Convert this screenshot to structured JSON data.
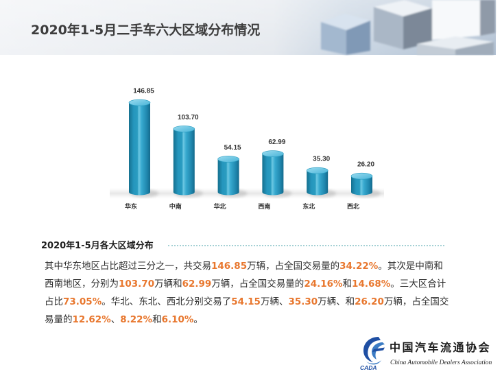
{
  "header": {
    "title": "2020年1-5月二手车六大区域分布情况"
  },
  "chart_data": {
    "type": "bar",
    "categories": [
      "华东",
      "中南",
      "华北",
      "西南",
      "东北",
      "西北"
    ],
    "values": [
      146.85,
      103.7,
      54.15,
      62.99,
      35.3,
      26.2
    ],
    "value_labels": [
      "146.85",
      "103.70",
      "54.15",
      "62.99",
      "35.30",
      "26.20"
    ],
    "bar_color": "#2a9cc0",
    "grid": false,
    "axes_visible": false,
    "legend": "none"
  },
  "summary": {
    "title": "2020年1-5月各大区域分布",
    "highlight_color": "#e8772e",
    "lines": [
      [
        {
          "text": "其中华东地区占比超过三分之一，共交易",
          "highlight": false
        },
        {
          "text": "146.85",
          "highlight": true
        },
        {
          "text": "万辆，占全国交易量的",
          "highlight": false
        },
        {
          "text": "34.22%",
          "highlight": true
        },
        {
          "text": "。其次是中南和",
          "highlight": false
        }
      ],
      [
        {
          "text": "西南地区，分别为",
          "highlight": false
        },
        {
          "text": "103.70",
          "highlight": true
        },
        {
          "text": "万辆和",
          "highlight": false
        },
        {
          "text": "62.99",
          "highlight": true
        },
        {
          "text": "万辆，占全国交易量的",
          "highlight": false
        },
        {
          "text": "24.16%",
          "highlight": true
        },
        {
          "text": "和",
          "highlight": false
        },
        {
          "text": "14.68%",
          "highlight": true
        },
        {
          "text": "。三大区合计",
          "highlight": false
        }
      ],
      [
        {
          "text": "占比",
          "highlight": false
        },
        {
          "text": "73.05%",
          "highlight": true
        },
        {
          "text": "。华北、东北、西北分别交易了",
          "highlight": false
        },
        {
          "text": "54.15",
          "highlight": true
        },
        {
          "text": "万辆、",
          "highlight": false
        },
        {
          "text": "35.30",
          "highlight": true
        },
        {
          "text": "万辆、和",
          "highlight": false
        },
        {
          "text": "26.20",
          "highlight": true
        },
        {
          "text": "万辆，占全国交",
          "highlight": false
        }
      ],
      [
        {
          "text": "易量的",
          "highlight": false
        },
        {
          "text": "12.62%",
          "highlight": true
        },
        {
          "text": "、",
          "highlight": false
        },
        {
          "text": "8.22%",
          "highlight": true
        },
        {
          "text": "和",
          "highlight": false
        },
        {
          "text": "6.10%",
          "highlight": true
        },
        {
          "text": "。",
          "highlight": false
        }
      ]
    ]
  },
  "logo": {
    "name_cn": "中国汽车流通协会",
    "name_en": "China Automobile Dealers Association",
    "abbr": "CADA",
    "brand_color": "#1f4fa3"
  }
}
